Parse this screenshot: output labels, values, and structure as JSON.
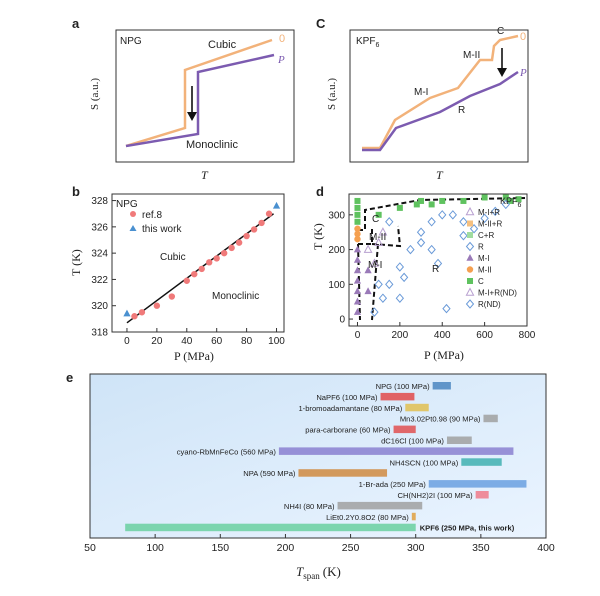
{
  "chart_data": [
    {
      "panel": "a",
      "type": "line",
      "title": "NPG",
      "xlabel": "T",
      "ylabel": "S (a.u.)",
      "series": [
        {
          "name": "0",
          "color": "#f2b27a"
        },
        {
          "name": "P",
          "color": "#7c5bb0"
        }
      ],
      "annotations": [
        "Cubic",
        "Monoclinic"
      ]
    },
    {
      "panel": "c",
      "type": "line",
      "title": "KPF",
      "title_sub": "6",
      "xlabel": "T",
      "ylabel": "S (a.u.)",
      "series": [
        {
          "name": "0",
          "color": "#f2b27a"
        },
        {
          "name": "P",
          "color": "#7c5bb0"
        }
      ],
      "annotations": [
        "C",
        "M-II",
        "M-I",
        "R"
      ]
    },
    {
      "panel": "b",
      "type": "scatter",
      "title": "NPG",
      "xlabel": "P (MPa)",
      "ylabel": "T (K)",
      "xlim": [
        -10,
        105
      ],
      "ylim": [
        318,
        328.5
      ],
      "xticks": [
        0,
        20,
        40,
        60,
        80,
        100
      ],
      "yticks": [
        318,
        320,
        322,
        324,
        326,
        328
      ],
      "annotations": [
        "Cubic",
        "Monoclinic"
      ],
      "series": [
        {
          "name": "ref.8",
          "marker": "circle",
          "color": "#f07a7a",
          "x": [
            5,
            10,
            20,
            30,
            40,
            45,
            50,
            55,
            60,
            65,
            70,
            75,
            80,
            85,
            90,
            95
          ],
          "y": [
            319.2,
            319.5,
            320.0,
            320.7,
            321.9,
            322.4,
            322.8,
            323.3,
            323.6,
            324.0,
            324.4,
            324.8,
            325.3,
            325.8,
            326.3,
            327.0
          ]
        },
        {
          "name": "this work",
          "marker": "triangle",
          "color": "#4a90d0",
          "x": [
            0,
            100
          ],
          "y": [
            319.4,
            327.6
          ]
        }
      ],
      "fit_line": {
        "x": [
          0,
          98
        ],
        "y": [
          318.7,
          327.0
        ]
      }
    },
    {
      "panel": "d",
      "type": "scatter",
      "title": "KPF",
      "title_sub": "6",
      "xlabel": "P (MPa)",
      "ylabel": "T (K)",
      "xlim": [
        -40,
        800
      ],
      "ylim": [
        -20,
        360
      ],
      "xticks": [
        0,
        200,
        400,
        600,
        800
      ],
      "yticks": [
        0,
        100,
        200,
        300
      ],
      "region_labels": [
        "C",
        "M-II",
        "M-I",
        "R"
      ],
      "legend": [
        "M-I+R",
        "M-II+R",
        "C+R",
        "R",
        "M-I",
        "M-II",
        "C",
        "M-I+R(ND)",
        "R(ND)"
      ],
      "series": [
        {
          "name": "C",
          "marker": "square",
          "color": "#5fc25f",
          "x": [
            0,
            0,
            0,
            0,
            100,
            200,
            280,
            300,
            350,
            400,
            500,
            600,
            700,
            720,
            760
          ],
          "y": [
            340,
            320,
            300,
            280,
            300,
            320,
            330,
            340,
            330,
            340,
            340,
            350,
            350,
            340,
            345
          ]
        },
        {
          "name": "M-II",
          "marker": "circle",
          "color": "#f5a050",
          "x": [
            0,
            0,
            0
          ],
          "y": [
            260,
            245,
            230
          ]
        },
        {
          "name": "M-I",
          "marker": "triangle",
          "color": "#9a7ab8",
          "x": [
            0,
            0,
            0,
            0,
            0,
            0,
            0,
            50,
            50
          ],
          "y": [
            200,
            170,
            140,
            110,
            80,
            50,
            20,
            80,
            140
          ]
        },
        {
          "name": "M-I+R",
          "marker": "triangle-open",
          "color": "#b8a0d0",
          "x": [
            50,
            80,
            100,
            120
          ],
          "y": [
            200,
            160,
            220,
            250
          ]
        },
        {
          "name": "R",
          "marker": "diamond-open",
          "color": "#6a9ad8",
          "x": [
            80,
            120,
            150,
            200,
            250,
            300,
            350,
            400,
            450,
            500,
            550,
            600,
            650,
            700,
            150,
            220,
            300,
            380,
            420
          ],
          "y": [
            20,
            60,
            100,
            150,
            200,
            250,
            280,
            300,
            300,
            280,
            260,
            290,
            310,
            330,
            280,
            120,
            220,
            160,
            30
          ]
        },
        {
          "name": "R(ND)",
          "marker": "diamond-open",
          "color": "#6a9ad8",
          "x": [
            100,
            200,
            350,
            500
          ],
          "y": [
            100,
            60,
            200,
            240
          ]
        }
      ]
    },
    {
      "panel": "e",
      "type": "bar",
      "xlabel": "T",
      "xlabel_sub": "span",
      "xlabel_unit": "(K)",
      "xlim": [
        50,
        400
      ],
      "xticks": [
        50,
        100,
        150,
        200,
        250,
        300,
        350,
        400
      ],
      "bars": [
        {
          "label": "NPG (100 MPa)",
          "start": 313,
          "end": 327,
          "color": "#4a86c0"
        },
        {
          "label": "NaPF6 (100 MPa)",
          "start": 273,
          "end": 299,
          "color": "#e04a4a"
        },
        {
          "label": "1-bromoadamantane (80 MPa)",
          "start": 292,
          "end": 310,
          "color": "#e0c050"
        },
        {
          "label": "Mn3.02Pt0.98 (90 MPa)",
          "start": 352,
          "end": 363,
          "color": "#a0a0a0"
        },
        {
          "label": "para-carborane (60 MPa)",
          "start": 283,
          "end": 300,
          "color": "#e05050"
        },
        {
          "label": "dC16Cl (100 MPa)",
          "start": 324,
          "end": 343,
          "color": "#a0a0a0"
        },
        {
          "label": "cyano-RbMnFeCo (560 MPa)",
          "start": 195,
          "end": 375,
          "color": "#8a80d0"
        },
        {
          "label": "NH4SCN (100 MPa)",
          "start": 335,
          "end": 366,
          "color": "#40b0b0"
        },
        {
          "label": "NPA (590 MPa)",
          "start": 210,
          "end": 278,
          "color": "#d08a40"
        },
        {
          "label": "1-Br-ada (250 MPa)",
          "start": 310,
          "end": 385,
          "color": "#6aa0e0"
        },
        {
          "label": "CH(NH2)2I (100 MPa)",
          "start": 346,
          "end": 356,
          "color": "#f07a8a"
        },
        {
          "label": "NH4I (80 MPa)",
          "start": 240,
          "end": 305,
          "color": "#a0a0a0"
        },
        {
          "label": "LiEt0.2Y0.8O2 (80 MPa)",
          "start": 297,
          "end": 300,
          "color": "#e0a040"
        },
        {
          "label": "KPF6 (250 MPa, this work)",
          "start": 77,
          "end": 300,
          "color": "#6ad0a0"
        }
      ]
    }
  ],
  "labels": {
    "a": "a",
    "b": "b",
    "c": "C",
    "d": "d",
    "e": "e",
    "npg": "NPG",
    "kpf": "KPF",
    "kpf_sub": "6",
    "cubic": "Cubic",
    "monoclinic": "Monoclinic",
    "zero": "0",
    "p": "P",
    "s_axis": "S (a.u.)",
    "t": "T",
    "m2": "M-II",
    "m1": "M-I",
    "r": "R",
    "t_axis_b": "T (K)",
    "p_axis": "P (MPa)",
    "ref8": "ref.8",
    "this_work": "this work",
    "t_axis_d": "T (K)"
  }
}
